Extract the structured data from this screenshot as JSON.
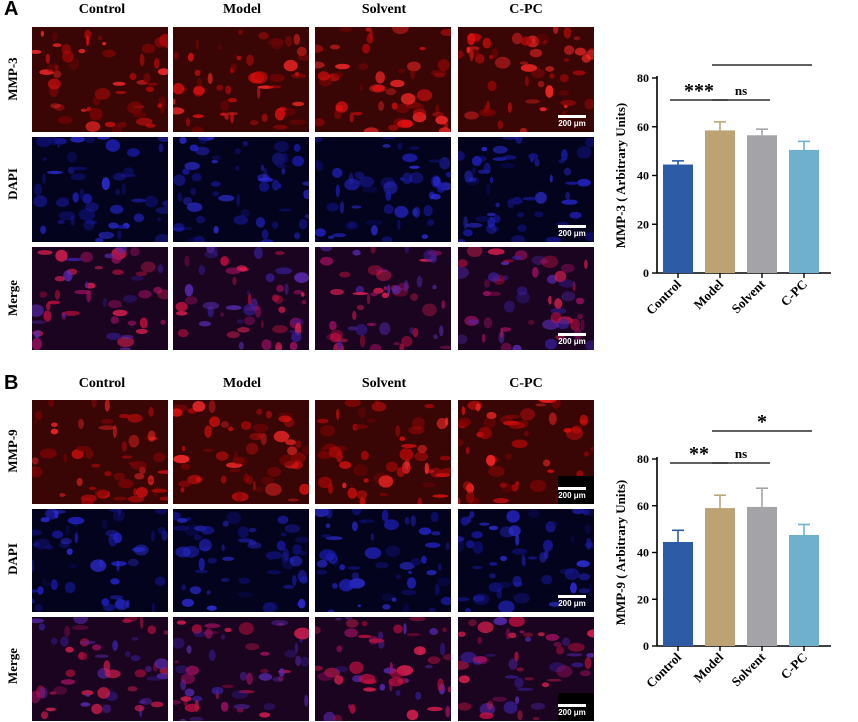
{
  "panels": [
    {
      "letter": "A",
      "columns": [
        "Control",
        "Model",
        "Solvent",
        "C-PC"
      ],
      "rows": [
        "MMP-3",
        "DAPI",
        "Merge"
      ],
      "scale_label": "200 μm"
    },
    {
      "letter": "B",
      "columns": [
        "Control",
        "Model",
        "Solvent",
        "C-PC"
      ],
      "rows": [
        "MMP-9",
        "DAPI",
        "Merge"
      ],
      "scale_label": "200 μm"
    }
  ],
  "chart_data": [
    {
      "type": "bar",
      "categories": [
        "Control",
        "Model",
        "Solvent",
        "C-PC"
      ],
      "values": [
        44.5,
        58.5,
        56.5,
        50.5
      ],
      "errors": [
        1.5,
        3.5,
        2.5,
        3.5
      ],
      "ylabel": "MMP-3 ( Arbitrary Units)",
      "xlabel": "",
      "ylim": [
        0,
        80
      ],
      "yticks": [
        0,
        20,
        40,
        60,
        80
      ],
      "colors": [
        "#2e5ba6",
        "#bda374",
        "#a3a3a8",
        "#6fb0cc"
      ],
      "significance": [
        {
          "from": 0,
          "to": 1,
          "label": "***"
        },
        {
          "from": 1,
          "to": 2,
          "label": "ns"
        },
        {
          "from": 1,
          "to": 3,
          "label": "**"
        }
      ]
    },
    {
      "type": "bar",
      "categories": [
        "Control",
        "Model",
        "Solvent",
        "C-PC"
      ],
      "values": [
        44.5,
        59,
        59.5,
        47.5
      ],
      "errors": [
        5,
        5.5,
        8,
        4.5
      ],
      "ylabel": "MMP-9 ( Arbitrary Units)",
      "xlabel": "",
      "ylim": [
        0,
        80
      ],
      "yticks": [
        0,
        20,
        40,
        60,
        80
      ],
      "colors": [
        "#2e5ba6",
        "#bda374",
        "#a3a3a8",
        "#6fb0cc"
      ],
      "significance": [
        {
          "from": 0,
          "to": 1,
          "label": "**"
        },
        {
          "from": 1,
          "to": 2,
          "label": "ns"
        },
        {
          "from": 1,
          "to": 3,
          "label": "*"
        }
      ]
    }
  ]
}
